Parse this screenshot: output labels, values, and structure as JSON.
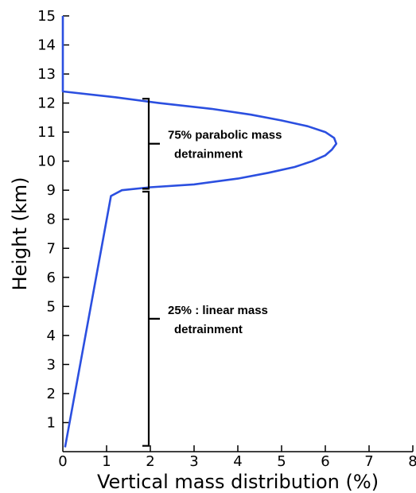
{
  "chart_data": {
    "type": "line",
    "title": "",
    "xlabel": "Vertical mass distribution (%)",
    "ylabel": "Height (km)",
    "xlim": [
      0,
      8
    ],
    "ylim": [
      0,
      15
    ],
    "xticks": [
      "0",
      "1",
      "2",
      "3",
      "4",
      "5",
      "6",
      "7",
      "8"
    ],
    "yticks": [
      "1",
      "2",
      "3",
      "4",
      "5",
      "6",
      "7",
      "8",
      "9",
      "10",
      "11",
      "12",
      "13",
      "14",
      "15"
    ],
    "grid": false,
    "line_color": "#2b4fe0",
    "series": [
      {
        "x": [
          0.05,
          1.1,
          1.35,
          2.0,
          3.0,
          4.0,
          4.7,
          5.3,
          5.7,
          6.0,
          6.15,
          6.25,
          6.2,
          6.0,
          5.6,
          5.0,
          4.3,
          3.4,
          2.2,
          1.2,
          0.0,
          0.0
        ],
        "y": [
          0.15,
          8.8,
          9.0,
          9.1,
          9.2,
          9.4,
          9.6,
          9.8,
          10.0,
          10.2,
          10.4,
          10.6,
          10.8,
          11.0,
          11.2,
          11.4,
          11.6,
          11.8,
          12.0,
          12.2,
          12.4,
          15.0
        ]
      }
    ],
    "annotations": [
      {
        "line1": "75% parabolic mass",
        "line2": "detrainment",
        "y_from": 9.05,
        "y_to": 12.15,
        "x": 2.0
      },
      {
        "line1": "25% : linear mass",
        "line2": "detrainment",
        "y_from": 0.2,
        "y_to": 8.95,
        "x": 2.0
      }
    ]
  }
}
